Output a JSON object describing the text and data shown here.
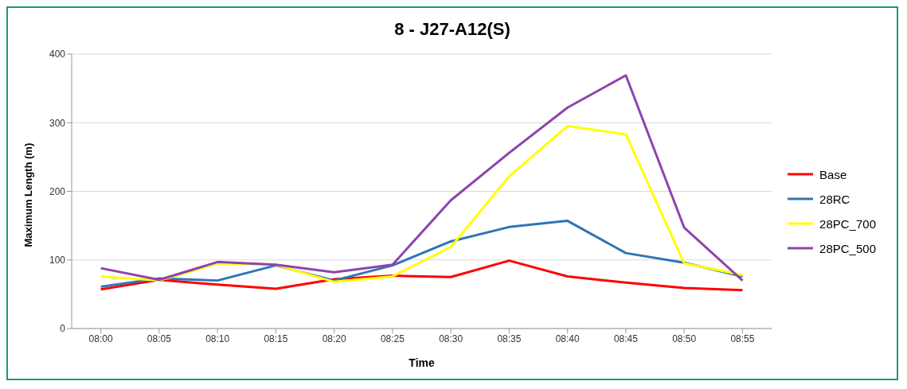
{
  "chart_data": {
    "type": "line",
    "title": "8 - J27-A12(S)",
    "xlabel": "Time",
    "ylabel": "Maximum  Length (m)",
    "categories": [
      "08:00",
      "08:05",
      "08:10",
      "08:15",
      "08:20",
      "08:25",
      "08:30",
      "08:35",
      "08:40",
      "08:45",
      "08:50",
      "08:55"
    ],
    "series": [
      {
        "name": "Base",
        "color": "#ff0000",
        "values": [
          57,
          71,
          64,
          58,
          72,
          77,
          75,
          99,
          76,
          67,
          59,
          56
        ]
      },
      {
        "name": "28RC",
        "color": "#2e75b6",
        "values": [
          61,
          73,
          70,
          92,
          70,
          92,
          127,
          148,
          157,
          110,
          96,
          76
        ]
      },
      {
        "name": "28PC_700",
        "color": "#ffff00",
        "values": [
          76,
          70,
          95,
          93,
          68,
          76,
          119,
          222,
          295,
          283,
          95,
          78
        ]
      },
      {
        "name": "28PC_500",
        "color": "#8e44ad",
        "values": [
          88,
          71,
          97,
          93,
          82,
          93,
          187,
          256,
          322,
          369,
          147,
          70
        ]
      }
    ],
    "ylim": [
      0,
      400
    ],
    "yticks": [
      0,
      100,
      200,
      300,
      400
    ],
    "grid": "y",
    "legend": "right",
    "marker": "none",
    "line_style": "solid"
  }
}
